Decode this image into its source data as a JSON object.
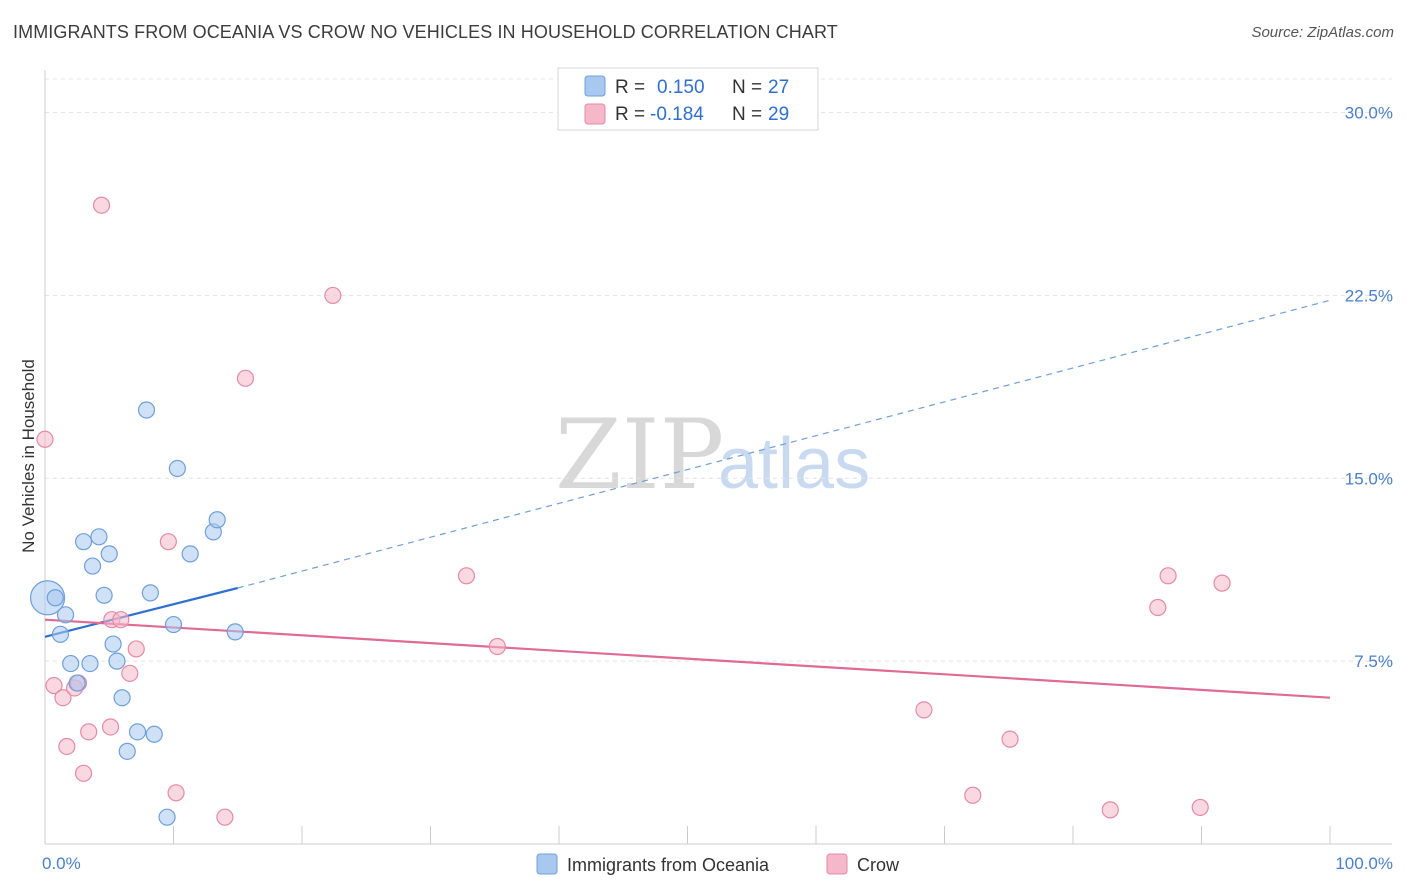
{
  "header": {
    "title": "IMMIGRANTS FROM OCEANIA VS CROW NO VEHICLES IN HOUSEHOLD CORRELATION CHART",
    "source": "Source: ZipAtlas.com"
  },
  "watermark": {
    "zip": "ZIP",
    "atlas": "atlas"
  },
  "legend": {
    "rows": [
      {
        "r_label": "R =",
        "r_value": "0.150",
        "n_label": "N =",
        "n_value": "27",
        "color": "#a8c8f0"
      },
      {
        "r_label": "R =",
        "r_value": "-0.184",
        "n_label": "N =",
        "n_value": "29",
        "color": "#f5b8cb"
      }
    ]
  },
  "chart_data": {
    "type": "scatter",
    "title": "IMMIGRANTS FROM OCEANIA VS CROW NO VEHICLES IN HOUSEHOLD CORRELATION CHART",
    "xlabel": "",
    "ylabel": "No Vehicles in Household",
    "xlim": [
      0,
      100
    ],
    "ylim": [
      0,
      31.5
    ],
    "x_tick_labels": [
      "0.0%",
      "100.0%"
    ],
    "y_ticks": [
      7.5,
      15.0,
      22.5,
      30.0
    ],
    "y_tick_labels": [
      "7.5%",
      "15.0%",
      "22.5%",
      "30.0%"
    ],
    "grid": true,
    "legend_position": "top-center",
    "series": [
      {
        "name": "Immigrants from Oceania",
        "color": "#a8c8f0",
        "stroke": "#6f9fdc",
        "points": [
          [
            0.2,
            10.1
          ],
          [
            0.8,
            10.1
          ],
          [
            1.2,
            8.6
          ],
          [
            1.6,
            9.4
          ],
          [
            2.0,
            7.4
          ],
          [
            2.5,
            6.6
          ],
          [
            3.0,
            12.4
          ],
          [
            3.5,
            7.4
          ],
          [
            3.7,
            11.4
          ],
          [
            4.2,
            12.6
          ],
          [
            4.6,
            10.2
          ],
          [
            5.0,
            11.9
          ],
          [
            5.3,
            8.2
          ],
          [
            5.6,
            7.5
          ],
          [
            6.0,
            6.0
          ],
          [
            6.4,
            3.8
          ],
          [
            7.2,
            4.6
          ],
          [
            7.9,
            17.8
          ],
          [
            8.2,
            10.3
          ],
          [
            8.5,
            4.5
          ],
          [
            9.5,
            1.1
          ],
          [
            10.0,
            9.0
          ],
          [
            10.3,
            15.4
          ],
          [
            11.3,
            11.9
          ],
          [
            13.1,
            12.8
          ],
          [
            13.4,
            13.3
          ],
          [
            14.8,
            8.7
          ]
        ],
        "sizes": [
          34,
          16,
          16,
          16,
          16,
          16,
          16,
          16,
          16,
          16,
          16,
          16,
          16,
          16,
          16,
          16,
          16,
          16,
          16,
          16,
          16,
          16,
          16,
          16,
          16,
          16,
          16
        ],
        "trend": {
          "x0": 0,
          "y0": 8.5,
          "x1": 15,
          "y1": 10.5,
          "dash_to_x": 100,
          "dash_to_y": 22.3
        }
      },
      {
        "name": "Crow",
        "color": "#f5b8cb",
        "stroke": "#e58aa7",
        "points": [
          [
            0.0,
            16.6
          ],
          [
            0.7,
            6.5
          ],
          [
            1.4,
            6.0
          ],
          [
            1.7,
            4.0
          ],
          [
            2.3,
            6.4
          ],
          [
            2.6,
            6.6
          ],
          [
            3.0,
            2.9
          ],
          [
            3.4,
            4.6
          ],
          [
            4.4,
            26.2
          ],
          [
            5.1,
            4.8
          ],
          [
            5.2,
            9.2
          ],
          [
            5.9,
            9.2
          ],
          [
            6.6,
            7.0
          ],
          [
            7.1,
            8.0
          ],
          [
            9.6,
            12.4
          ],
          [
            10.2,
            2.1
          ],
          [
            14.0,
            1.1
          ],
          [
            15.6,
            19.1
          ],
          [
            22.4,
            22.5
          ],
          [
            32.8,
            11.0
          ],
          [
            35.2,
            8.1
          ],
          [
            68.4,
            5.5
          ],
          [
            72.2,
            2.0
          ],
          [
            75.1,
            4.3
          ],
          [
            82.9,
            1.4
          ],
          [
            86.6,
            9.7
          ],
          [
            87.4,
            11.0
          ],
          [
            89.9,
            1.5
          ],
          [
            91.6,
            10.7
          ]
        ],
        "sizes": [
          16,
          16,
          16,
          16,
          16,
          16,
          16,
          16,
          16,
          16,
          16,
          16,
          16,
          16,
          16,
          16,
          16,
          16,
          16,
          16,
          16,
          16,
          16,
          16,
          16,
          16,
          16,
          16,
          16
        ],
        "trend": {
          "x0": 0,
          "y0": 9.2,
          "x1": 100,
          "y1": 6.0
        }
      }
    ]
  }
}
